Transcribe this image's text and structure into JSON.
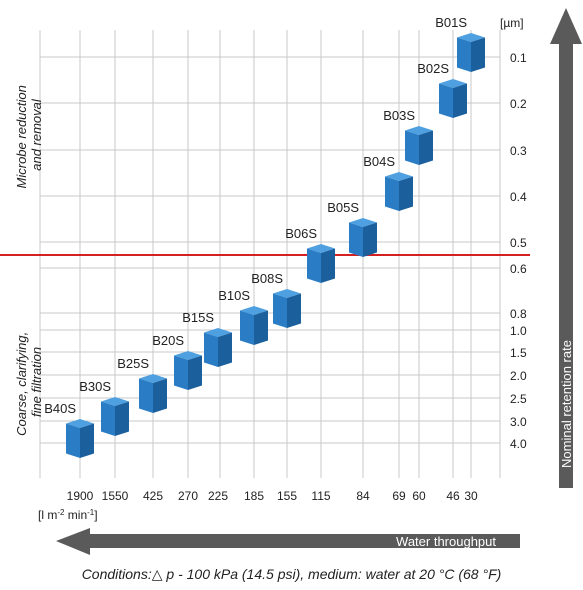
{
  "chart_data": {
    "type": "scatter",
    "y_unit_label": "[µm]",
    "x_unit_label_parts": [
      "[l m",
      "-2",
      " min",
      "-1",
      "]"
    ],
    "x_axis_arrow_label": "Water throughput",
    "y_axis_arrow_label": "Nominal retention rate",
    "x_categories": [
      "1900",
      "1550",
      "425",
      "270",
      "225",
      "185",
      "155",
      "115",
      "84",
      "69",
      "60",
      "46",
      "30"
    ],
    "y_ticks": [
      "0.1",
      "0.2",
      "0.3",
      "0.4",
      "0.5",
      "0.6",
      "0.8",
      "1.0",
      "1.5",
      "2.0",
      "2.5",
      "3.0",
      "4.0"
    ],
    "region_labels": {
      "upper": [
        "Microbe reduction",
        "and removal"
      ],
      "lower": [
        "Coarse, clarifying,",
        "fine filtration"
      ]
    },
    "points": [
      {
        "label": "B01S",
        "x": "30",
        "y": "0.1"
      },
      {
        "label": "B02S",
        "x": "46",
        "y": "0.2"
      },
      {
        "label": "B03S",
        "x": "60",
        "y": "0.3"
      },
      {
        "label": "B04S",
        "x": "69",
        "y": "0.4"
      },
      {
        "label": "B05S",
        "x": "84",
        "y": "0.5"
      },
      {
        "label": "B06S",
        "x": "115",
        "y": "0.6"
      },
      {
        "label": "B08S",
        "x": "155",
        "y": "0.8"
      },
      {
        "label": "B10S",
        "x": "185",
        "y": "1.0"
      },
      {
        "label": "B15S",
        "x": "225",
        "y": "1.5"
      },
      {
        "label": "B20S",
        "x": "270",
        "y": "2.0"
      },
      {
        "label": "B25S",
        "x": "425",
        "y": "2.5"
      },
      {
        "label": "B30S",
        "x": "1550",
        "y": "3.0"
      },
      {
        "label": "B40S",
        "x": "1900",
        "y": "4.0"
      }
    ],
    "divider_between_y": [
      "0.5",
      "0.6"
    ],
    "grid": true,
    "colors": {
      "cube_top": "#4fa0e0",
      "cube_left": "#2a7cc4",
      "cube_right": "#1b5f9c",
      "divider": "#d42020",
      "arrow": "#5a5a5a",
      "grid": "#c8c8c8"
    }
  },
  "conditions": {
    "prefix": "Conditions:",
    "delta_symbol": "△",
    "text": " p - 100 kPa (14.5 psi), medium: water at 20 °C (68 °F)"
  }
}
